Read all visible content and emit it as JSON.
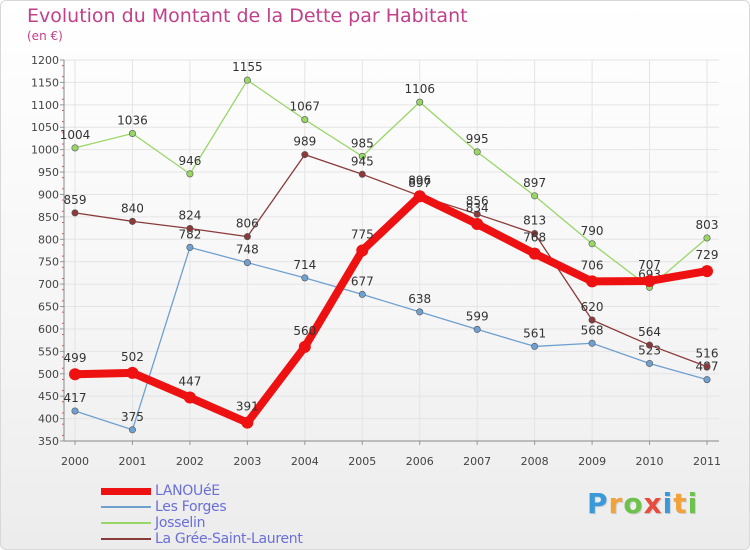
{
  "title": "Evolution du Montant de la Dette par Habitant",
  "unit": "(en €)",
  "logo": {
    "letters": [
      "P",
      "r",
      "o",
      "x",
      "i",
      "t",
      "i"
    ],
    "colors": [
      "#3a9ad9",
      "#f2a23a",
      "#6cc24a",
      "#e74c3c",
      "#3a9ad9",
      "#f2a23a",
      "#6cc24a"
    ]
  },
  "chart_data": {
    "type": "line",
    "title": "Evolution du Montant de la Dette par Habitant",
    "ylabel": "(en €)",
    "xlabel": "",
    "x": [
      "2000",
      "2001",
      "2002",
      "2003",
      "2004",
      "2005",
      "2006",
      "2007",
      "2008",
      "2009",
      "2010",
      "2011"
    ],
    "ylim": [
      350,
      1200
    ],
    "yticks": [
      350,
      400,
      450,
      500,
      550,
      600,
      650,
      700,
      750,
      800,
      850,
      900,
      950,
      1000,
      1050,
      1100,
      1150,
      1200
    ],
    "grid": true,
    "legend": "bottom-left",
    "series": [
      {
        "name": "Les Forges",
        "color": "#6fa0d0",
        "values": [
          417,
          375,
          782,
          748,
          714,
          677,
          638,
          599,
          561,
          568,
          523,
          487
        ],
        "labels": [
          "417",
          "375",
          "782",
          "748",
          "714",
          "677",
          "638",
          "599",
          "561",
          "568",
          "523",
          "487"
        ]
      },
      {
        "name": "Josselin",
        "color": "#99d668",
        "values": [
          1004,
          1036,
          946,
          1155,
          1067,
          985,
          1106,
          995,
          897,
          790,
          693,
          803
        ],
        "labels": [
          "1004",
          "1036",
          "946",
          "1155",
          "1067",
          "985",
          "1106",
          "995",
          "897",
          "790",
          "693",
          "803"
        ]
      },
      {
        "name": "La Grée-Saint-Laurent",
        "color": "#8a3a3a",
        "values": [
          859,
          840,
          824,
          806,
          989,
          945,
          897,
          856,
          813,
          620,
          564,
          516
        ],
        "labels": [
          "859",
          "840",
          "824",
          "806",
          "989",
          "945",
          "897",
          "856",
          "813",
          "620",
          "564",
          "516"
        ]
      },
      {
        "name": "LANOUéE",
        "color": "#ee1111",
        "values": [
          499,
          502,
          447,
          391,
          560,
          775,
          896,
          834,
          768,
          706,
          707,
          729
        ],
        "labels": [
          "499",
          "502",
          "447",
          "391",
          "560",
          "775",
          "896",
          "834",
          "768",
          "706",
          "707",
          "729"
        ]
      }
    ]
  },
  "legend": [
    {
      "label": "LANOUéE",
      "color": "#ee1111",
      "thick": true
    },
    {
      "label": "Les Forges",
      "color": "#6fa0d0",
      "thick": false
    },
    {
      "label": "Josselin",
      "color": "#99d668",
      "thick": false
    },
    {
      "label": "La Grée-Saint-Laurent",
      "color": "#8a3a3a",
      "thick": false
    }
  ]
}
